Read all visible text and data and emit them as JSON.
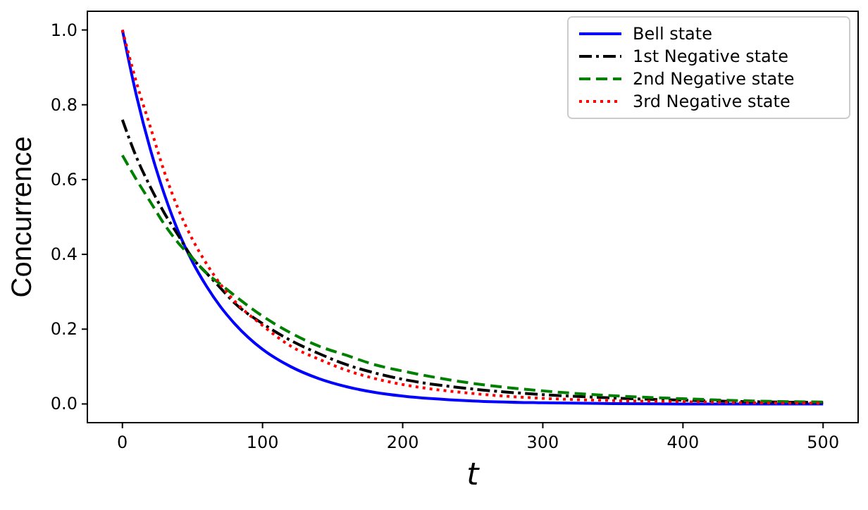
{
  "chart_data": {
    "type": "line",
    "xlabel": "t",
    "ylabel": "Concurrence",
    "xlim": [
      -25,
      525
    ],
    "ylim": [
      -0.05,
      1.05
    ],
    "xticks": [
      0,
      100,
      200,
      300,
      400,
      500
    ],
    "yticks": [
      {
        "value": 0,
        "label": "0.0"
      },
      {
        "value": 0.2,
        "label": "0.2"
      },
      {
        "value": 0.4,
        "label": "0.4"
      },
      {
        "value": 0.6,
        "label": "0.6"
      },
      {
        "value": 0.8,
        "label": "0.8"
      },
      {
        "value": 1,
        "label": "1.0"
      }
    ],
    "grid": false,
    "legend": "top right",
    "x": [
      0,
      10,
      20,
      30,
      40,
      50,
      60,
      70,
      80,
      100,
      120,
      140,
      160,
      180,
      200,
      250,
      300,
      350,
      400,
      450,
      500
    ],
    "series": [
      {
        "name": "Bell state",
        "color": "#0000ff",
        "line_style": "solid",
        "values": [
          1,
          0.825,
          0.68,
          0.56,
          0.46,
          0.38,
          0.315,
          0.26,
          0.215,
          0.146,
          0.1,
          0.068,
          0.046,
          0.031,
          0.021,
          0.008,
          0.003,
          0.001,
          0,
          0,
          0
        ]
      },
      {
        "name": "1st Negative state",
        "color": "#000000",
        "line_style": "dashdot",
        "values": [
          0.76,
          0.66,
          0.58,
          0.51,
          0.45,
          0.39,
          0.35,
          0.31,
          0.27,
          0.215,
          0.17,
          0.135,
          0.105,
          0.083,
          0.066,
          0.04,
          0.025,
          0.016,
          0.01,
          0.006,
          0.004
        ]
      },
      {
        "name": "2nd Negative state",
        "color": "#008000",
        "line_style": "dashed",
        "values": [
          0.665,
          0.6,
          0.54,
          0.48,
          0.43,
          0.39,
          0.35,
          0.32,
          0.29,
          0.235,
          0.19,
          0.155,
          0.13,
          0.105,
          0.088,
          0.055,
          0.035,
          0.022,
          0.014,
          0.008,
          0.005
        ]
      },
      {
        "name": "3rd Negative state",
        "color": "#ff0000",
        "line_style": "dotted",
        "values": [
          1,
          0.86,
          0.74,
          0.62,
          0.52,
          0.44,
          0.375,
          0.32,
          0.275,
          0.21,
          0.155,
          0.12,
          0.09,
          0.068,
          0.052,
          0.028,
          0.015,
          0.009,
          0.006,
          0.003,
          0.002
        ]
      }
    ]
  }
}
